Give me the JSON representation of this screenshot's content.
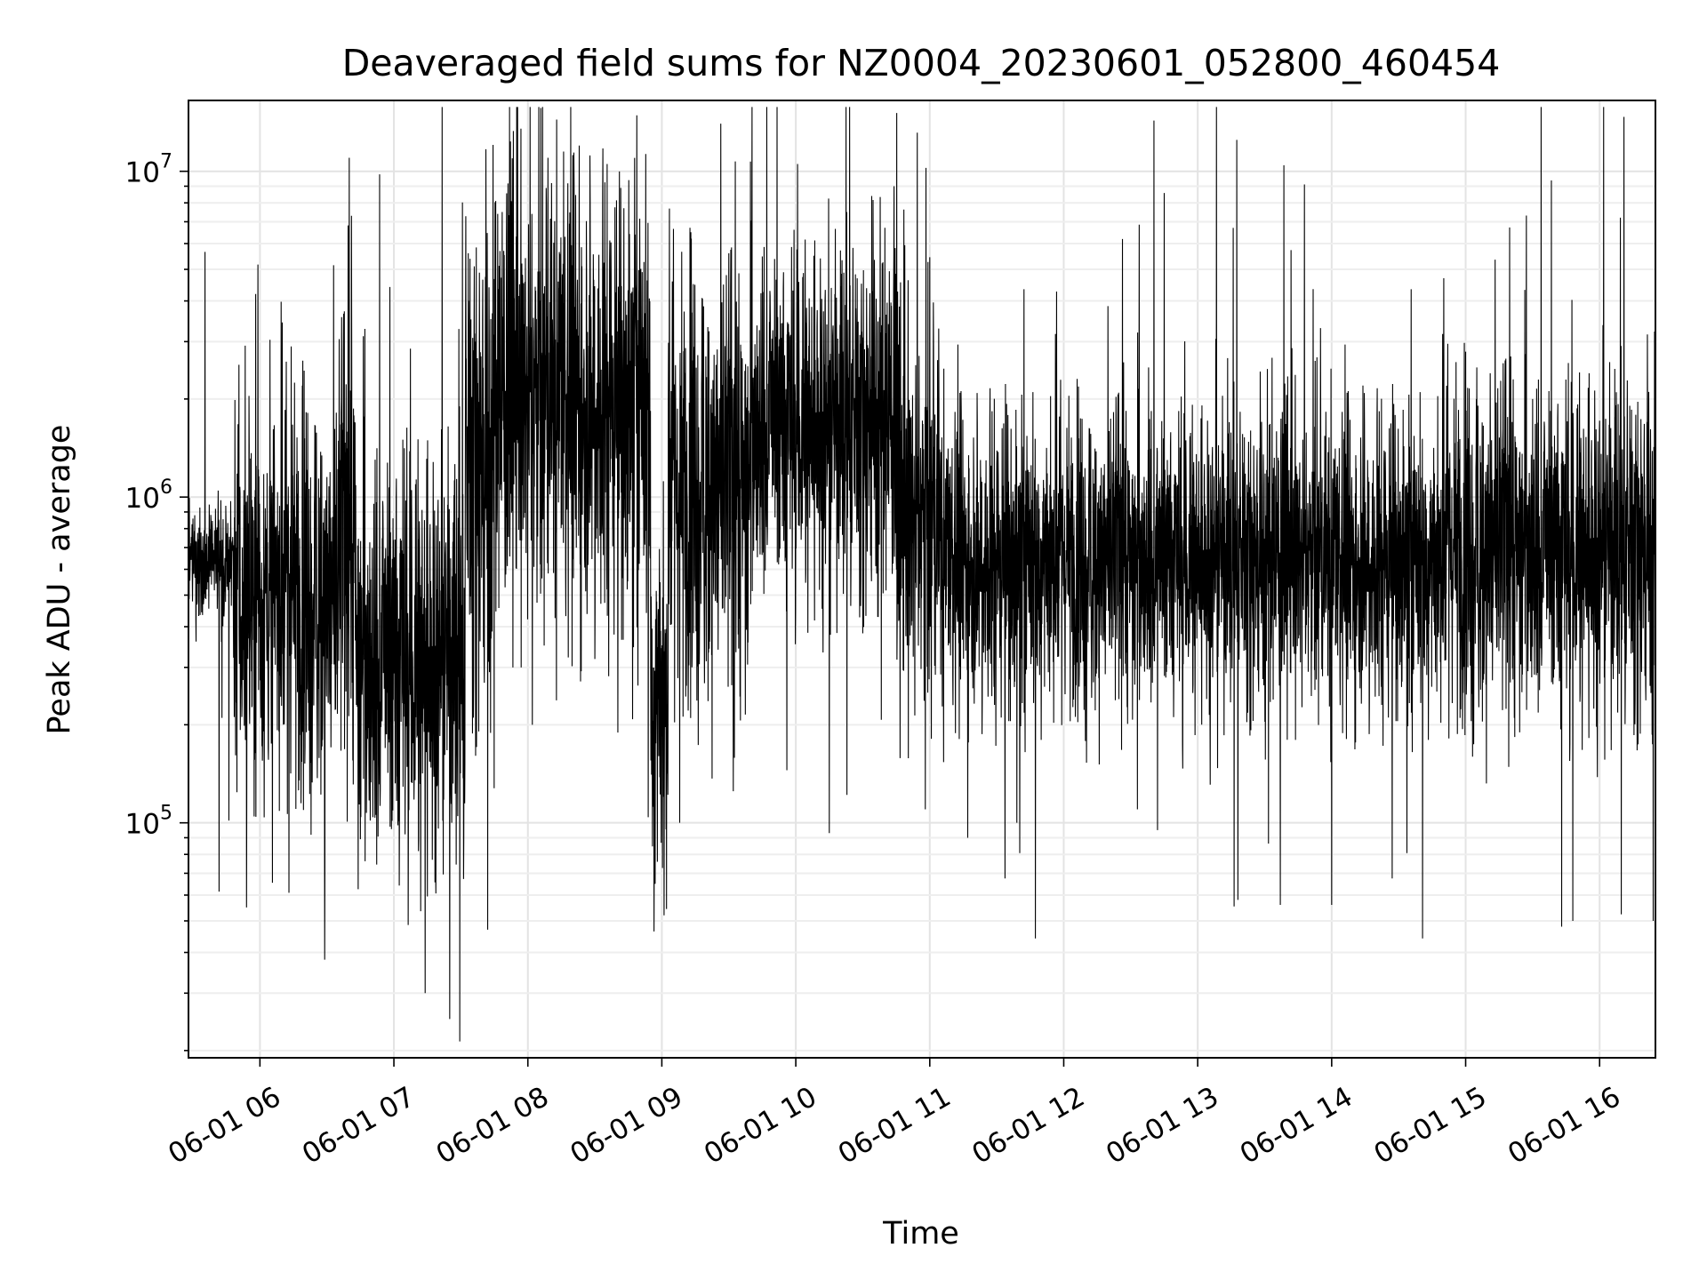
{
  "chart_data": {
    "type": "line",
    "title": "Deaveraged field sums for NZ0004_20230601_052800_460454",
    "xlabel": "Time",
    "ylabel": "Peak ADU - average",
    "yscale": "log",
    "ylim": [
      19000,
      16500000
    ],
    "xlim": [
      "2023-06-01 05:28",
      "2023-06-01 16:25"
    ],
    "grid": true,
    "color": "#000000",
    "x_ticks": [
      {
        "t": "2023-06-01 06:00",
        "label": "06-01 06"
      },
      {
        "t": "2023-06-01 07:00",
        "label": "06-01 07"
      },
      {
        "t": "2023-06-01 08:00",
        "label": "06-01 08"
      },
      {
        "t": "2023-06-01 09:00",
        "label": "06-01 09"
      },
      {
        "t": "2023-06-01 10:00",
        "label": "06-01 10"
      },
      {
        "t": "2023-06-01 11:00",
        "label": "06-01 11"
      },
      {
        "t": "2023-06-01 12:00",
        "label": "06-01 12"
      },
      {
        "t": "2023-06-01 13:00",
        "label": "06-01 13"
      },
      {
        "t": "2023-06-01 14:00",
        "label": "06-01 14"
      },
      {
        "t": "2023-06-01 15:00",
        "label": "06-01 15"
      },
      {
        "t": "2023-06-01 16:00",
        "label": "06-01 16"
      }
    ],
    "y_ticks": [
      {
        "value": 100000,
        "base": "10",
        "exp": "5"
      },
      {
        "value": 1000000,
        "base": "10",
        "exp": "6"
      },
      {
        "value": 10000000,
        "base": "10",
        "exp": "7"
      }
    ],
    "segments": [
      {
        "start": "2023-06-01 05:28",
        "end": "2023-06-01 05:48",
        "median": 620000,
        "spread": 0.15,
        "spikes": [
          [
            "2023-06-01 05:43",
            210000
          ]
        ]
      },
      {
        "start": "2023-06-01 05:48",
        "end": "2023-06-01 06:35",
        "median": 500000,
        "spread": 0.55,
        "spikes": [
          [
            "2023-06-01 05:54",
            55000
          ],
          [
            "2023-06-01 06:13",
            61000
          ],
          [
            "2023-06-01 06:14",
            2900000
          ],
          [
            "2023-06-01 06:19",
            2200000
          ],
          [
            "2023-06-01 06:29",
            38000
          ]
        ]
      },
      {
        "start": "2023-06-01 06:35",
        "end": "2023-06-01 06:43",
        "median": 700000,
        "spread": 0.6,
        "spikes": [
          [
            "2023-06-01 06:40",
            11000000
          ],
          [
            "2023-06-01 06:41",
            7300000
          ]
        ]
      },
      {
        "start": "2023-06-01 06:43",
        "end": "2023-06-01 07:32",
        "median": 320000,
        "spread": 0.6,
        "spikes": [
          [
            "2023-06-01 07:04",
            37000
          ],
          [
            "2023-06-01 07:14",
            30000
          ],
          [
            "2023-06-01 07:25",
            25000
          ],
          [
            "2023-06-01 07:04",
            1500000
          ]
        ]
      },
      {
        "start": "2023-06-01 07:32",
        "end": "2023-06-01 07:45",
        "median": 1300000,
        "spread": 0.7,
        "spikes": [
          [
            "2023-06-01 07:42",
            47000
          ]
        ]
      },
      {
        "start": "2023-06-01 07:45",
        "end": "2023-06-01 08:55",
        "median": 2000000,
        "spread": 0.62,
        "spikes": [
          [
            "2023-06-01 08:09",
            11000000
          ],
          [
            "2023-06-01 08:23",
            12000000
          ],
          [
            "2023-06-01 08:16",
            11500000
          ],
          [
            "2023-06-01 08:02",
            200000
          ],
          [
            "2023-06-01 08:48",
            6300000
          ]
        ]
      },
      {
        "start": "2023-06-01 08:55",
        "end": "2023-06-01 09:03",
        "median": 250000,
        "spread": 0.55,
        "spikes": [
          [
            "2023-06-01 08:57",
            65000
          ],
          [
            "2023-06-01 09:01",
            52000
          ]
        ]
      },
      {
        "start": "2023-06-01 09:03",
        "end": "2023-06-01 09:40",
        "median": 1100000,
        "spread": 0.6,
        "spikes": [
          [
            "2023-06-01 09:13",
            6500000
          ],
          [
            "2023-06-01 09:08",
            100000
          ],
          [
            "2023-06-01 09:32",
            125000
          ]
        ]
      },
      {
        "start": "2023-06-01 09:40",
        "end": "2023-06-01 10:45",
        "median": 1700000,
        "spread": 0.5,
        "spikes": [
          [
            "2023-06-01 10:34",
            8400000
          ],
          [
            "2023-06-01 10:44",
            9000000
          ],
          [
            "2023-06-01 10:15",
            93000
          ],
          [
            "2023-06-01 09:56",
            145000
          ]
        ]
      },
      {
        "start": "2023-06-01 10:45",
        "end": "2023-06-01 11:05",
        "median": 850000,
        "spread": 0.55,
        "spikes": [
          [
            "2023-06-01 10:58",
            110000
          ],
          [
            "2023-06-01 11:08",
            3100000
          ]
        ]
      },
      {
        "start": "2023-06-01 11:05",
        "end": "2023-06-01 14:50",
        "median": 650000,
        "spread": 0.42,
        "spikes": [
          [
            "2023-06-01 11:17",
            90000
          ],
          [
            "2023-06-01 11:39",
            100000
          ],
          [
            "2023-06-01 12:38",
            2500000
          ],
          [
            "2023-06-01 12:33",
            110000
          ],
          [
            "2023-06-01 12:42",
            95000
          ],
          [
            "2023-06-01 13:18",
            58000
          ],
          [
            "2023-06-01 13:37",
            56000
          ],
          [
            "2023-06-01 14:00",
            56000
          ],
          [
            "2023-06-01 14:14",
            2200000
          ]
        ]
      },
      {
        "start": "2023-06-01 14:50",
        "end": "2023-06-01 16:25",
        "median": 700000,
        "spread": 0.48,
        "spikes": [
          [
            "2023-06-01 15:05",
            2500000
          ],
          [
            "2023-06-01 15:11",
            2400000
          ],
          [
            "2023-06-01 15:43",
            48000
          ],
          [
            "2023-06-01 15:48",
            50000
          ],
          [
            "2023-06-01 16:24",
            50000
          ],
          [
            "2023-06-01 15:30",
            2000000
          ]
        ]
      }
    ]
  }
}
